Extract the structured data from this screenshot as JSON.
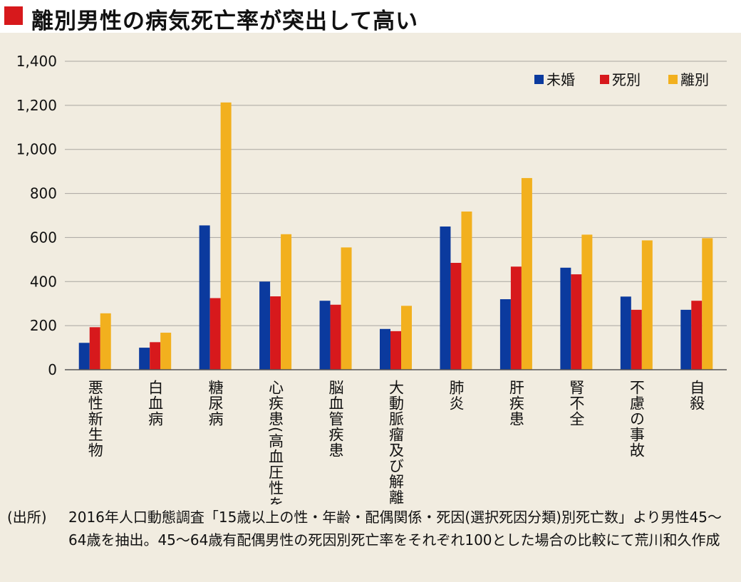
{
  "title": "離別男性の病気死亡率が突出して高い",
  "colors": {
    "title_marker": "#d7191c"
  },
  "chart_data": {
    "type": "bar",
    "title": "離別男性の病気死亡率が突出して高い",
    "categories": [
      "悪性新生物",
      "白血病",
      "糖尿病",
      "心疾患(高血圧性を除く)",
      "脳血管疾患",
      "大動脈瘤及び解離",
      "肺炎",
      "肝疾患",
      "腎不全",
      "不慮の事故",
      "自殺"
    ],
    "series": [
      {
        "name": "未婚",
        "color": "#0b3a9e",
        "values": [
          122,
          100,
          655,
          400,
          313,
          185,
          650,
          320,
          463,
          332,
          272
        ]
      },
      {
        "name": "死別",
        "color": "#d7191c",
        "values": [
          193,
          125,
          325,
          333,
          295,
          175,
          485,
          468,
          433,
          272,
          313
        ]
      },
      {
        "name": "離別",
        "color": "#f2b01e",
        "values": [
          256,
          168,
          1213,
          615,
          555,
          290,
          718,
          870,
          613,
          587,
          597
        ]
      }
    ],
    "y_ticks": [
      "0",
      "200",
      "400",
      "600",
      "800",
      "1,000",
      "1,200",
      "1,400"
    ],
    "ylim": [
      0,
      1400
    ],
    "grid": true,
    "legend_position": "top-right",
    "xlabel": "",
    "ylabel": ""
  },
  "source": {
    "label": "(出所)",
    "text": "2016年人口動態調査「15歳以上の性・年齢・配偶関係・死因(選択死因分類)別死亡数」より男性45〜64歳を抽出。45〜64歳有配偶男性の死因別死亡率をそれぞれ100とした場合の比較にて荒川和久作成"
  }
}
